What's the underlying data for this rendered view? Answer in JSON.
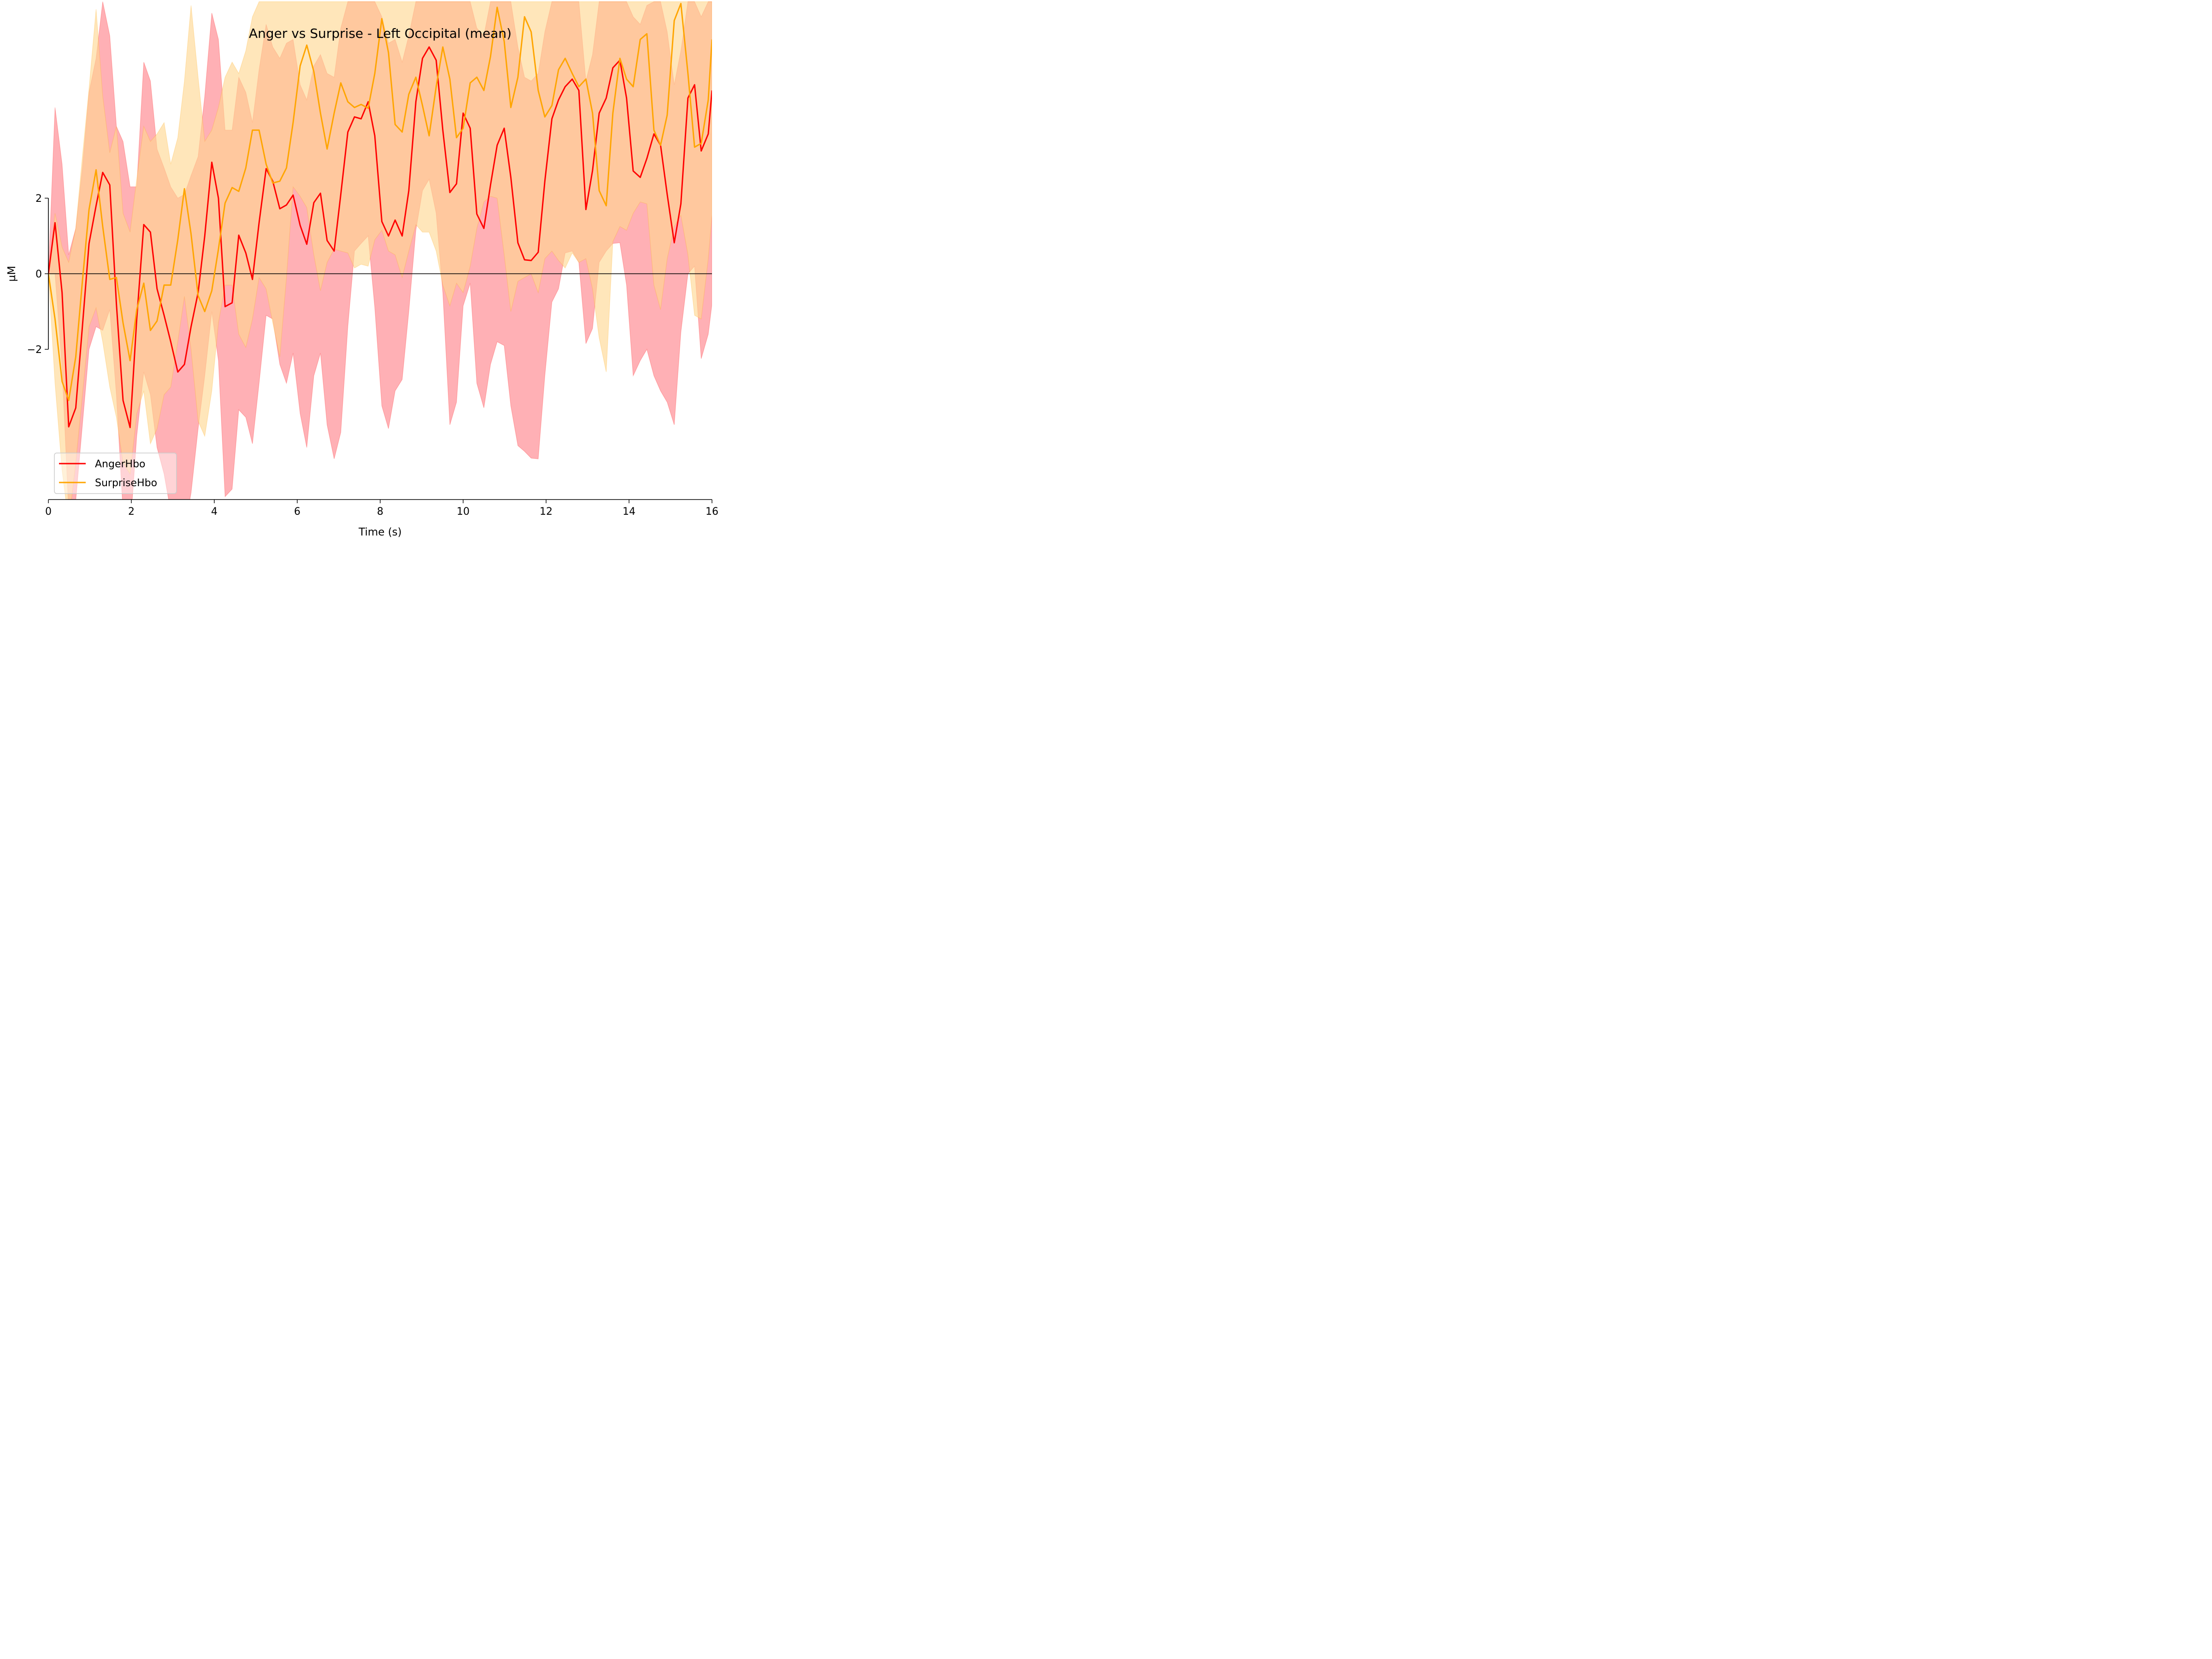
{
  "chart_data": {
    "type": "line",
    "title": "Anger vs Surprise - Left Occipital (mean)",
    "xlabel": "Time (s)",
    "ylabel": "µM",
    "xlim": [
      0,
      16
    ],
    "ylim": [
      -6,
      7.2
    ],
    "x_ticks": [
      0,
      2,
      4,
      6,
      8,
      10,
      12,
      14,
      16
    ],
    "x_tick_labels": [
      "0",
      "2",
      "4",
      "6",
      "8",
      "10",
      "12",
      "14",
      "16"
    ],
    "y_ticks": [
      -2,
      0,
      2
    ],
    "y_tick_labels": [
      "−2",
      "0",
      "2"
    ],
    "zero_line": true,
    "grid": false,
    "legend_position": "lower-left",
    "series": [
      {
        "name": "AngerHbo",
        "color": "#ff0000",
        "band_color": "#ff7f87",
        "x": [
          0,
          0.16,
          0.33,
          0.49,
          0.66,
          0.82,
          0.98,
          1.15,
          1.31,
          1.48,
          1.64,
          1.8,
          1.97,
          2.13,
          2.3,
          2.46,
          2.62,
          2.79,
          2.95,
          3.12,
          3.28,
          3.44,
          3.61,
          3.77,
          3.94,
          4.1,
          4.26,
          4.43,
          4.59,
          4.76,
          4.92,
          5.08,
          5.25,
          5.41,
          5.58,
          5.74,
          5.9,
          6.07,
          6.23,
          6.4,
          6.56,
          6.72,
          6.89,
          7.05,
          7.22,
          7.38,
          7.54,
          7.71,
          7.87,
          8.04,
          8.2,
          8.36,
          8.53,
          8.69,
          8.86,
          9.02,
          9.18,
          9.35,
          9.51,
          9.68,
          9.84,
          10.0,
          10.17,
          10.33,
          10.5,
          10.66,
          10.82,
          10.99,
          11.15,
          11.32,
          11.48,
          11.64,
          11.81,
          11.97,
          12.14,
          12.3,
          12.46,
          12.63,
          12.79,
          12.96,
          13.12,
          13.28,
          13.45,
          13.61,
          13.78,
          13.94,
          14.1,
          14.27,
          14.43,
          14.6,
          14.76,
          14.92,
          15.09,
          15.25,
          15.42,
          15.58,
          15.74,
          15.91,
          16.0
        ],
        "y": [
          0,
          1.35,
          -0.5,
          -4.05,
          -3.55,
          -1.4,
          0.8,
          1.8,
          2.68,
          2.35,
          -0.8,
          -3.35,
          -4.07,
          -1.2,
          1.3,
          1.1,
          -0.4,
          -1.1,
          -1.8,
          -2.6,
          -2.4,
          -1.4,
          -0.5,
          1.0,
          2.95,
          2.0,
          -0.87,
          -0.77,
          1.02,
          0.55,
          -0.15,
          1.35,
          2.78,
          2.45,
          1.72,
          1.82,
          2.08,
          1.28,
          0.78,
          1.88,
          2.13,
          0.88,
          0.6,
          2.1,
          3.75,
          4.15,
          4.1,
          4.55,
          3.65,
          1.38,
          1.0,
          1.42,
          1.0,
          2.2,
          4.55,
          5.7,
          6.0,
          5.65,
          3.8,
          2.15,
          2.38,
          4.25,
          3.85,
          1.58,
          1.2,
          2.35,
          3.4,
          3.85,
          2.55,
          0.82,
          0.37,
          0.35,
          0.57,
          2.45,
          4.1,
          4.6,
          4.95,
          5.15,
          4.85,
          1.7,
          2.73,
          4.25,
          4.65,
          5.45,
          5.65,
          4.65,
          2.72,
          2.55,
          3.05,
          3.7,
          3.4,
          2.1,
          0.82,
          1.85,
          4.65,
          5.0,
          3.25,
          3.7,
          4.85
        ],
        "lower": [
          0,
          0.0,
          -2.5,
          -6.3,
          -6.0,
          -4.0,
          -2.0,
          -1.4,
          -1.5,
          -0.95,
          -3.2,
          -6.3,
          -6.8,
          -4.3,
          -2.6,
          -3.2,
          -4.6,
          -5.3,
          -6.3,
          -7.0,
          -6.8,
          -5.8,
          -4.1,
          -2.7,
          -1.0,
          -2.3,
          -5.9,
          -5.7,
          -3.6,
          -3.8,
          -4.5,
          -2.9,
          -1.1,
          -1.2,
          -2.4,
          -2.9,
          -2.1,
          -3.7,
          -4.6,
          -2.7,
          -2.1,
          -4.0,
          -4.9,
          -4.2,
          -1.4,
          0.6,
          0.8,
          1.0,
          -0.9,
          -3.5,
          -4.1,
          -3.1,
          -2.8,
          -1.0,
          1.15,
          2.2,
          2.5,
          1.6,
          -0.5,
          -4.0,
          -3.4,
          -0.85,
          -0.25,
          -2.9,
          -3.55,
          -2.4,
          -1.8,
          -1.9,
          -3.5,
          -4.55,
          -4.7,
          -4.88,
          -4.9,
          -2.7,
          -0.75,
          -0.4,
          0.55,
          0.6,
          0.3,
          -1.85,
          -1.45,
          0.3,
          0.6,
          0.8,
          0.82,
          -0.3,
          -2.7,
          -2.3,
          -2.0,
          -2.7,
          -3.1,
          -3.4,
          -4.0,
          -1.55,
          0.0,
          0.2,
          -2.25,
          -1.6,
          -0.8
        ],
        "upper": [
          0,
          4.4,
          2.9,
          0.5,
          1.2,
          2.8,
          4.8,
          5.7,
          7.2,
          6.3,
          3.9,
          3.5,
          2.3,
          2.3,
          5.6,
          5.1,
          3.3,
          2.8,
          2.3,
          2.0,
          2.1,
          2.6,
          3.1,
          4.7,
          6.9,
          6.2,
          3.8,
          3.8,
          5.2,
          4.8,
          4.0,
          5.4,
          6.6,
          6.0,
          5.7,
          6.1,
          6.2,
          5.0,
          4.6,
          5.5,
          5.8,
          5.3,
          5.2,
          6.5,
          7.2,
          7.2,
          7.2,
          7.2,
          7.2,
          6.8,
          6.1,
          6.2,
          5.6,
          6.3,
          7.2,
          7.2,
          7.2,
          7.2,
          7.2,
          7.2,
          7.2,
          7.2,
          7.2,
          6.5,
          6.3,
          7.2,
          7.2,
          7.2,
          7.2,
          6.0,
          5.2,
          5.1,
          5.3,
          6.4,
          7.2,
          7.2,
          7.2,
          7.2,
          7.2,
          5.1,
          5.8,
          7.2,
          7.2,
          7.2,
          7.2,
          7.2,
          6.8,
          6.6,
          7.1,
          7.2,
          7.2,
          6.4,
          5.0,
          5.9,
          7.2,
          7.2,
          6.8,
          7.2,
          7.2
        ]
      },
      {
        "name": "SurpriseHbo",
        "color": "#ffa500",
        "band_color": "#ffd690",
        "x": [
          0,
          0.16,
          0.33,
          0.49,
          0.66,
          0.82,
          0.98,
          1.15,
          1.31,
          1.48,
          1.64,
          1.8,
          1.97,
          2.13,
          2.3,
          2.46,
          2.62,
          2.79,
          2.95,
          3.12,
          3.28,
          3.44,
          3.61,
          3.77,
          3.94,
          4.1,
          4.26,
          4.43,
          4.59,
          4.76,
          4.92,
          5.08,
          5.25,
          5.41,
          5.58,
          5.74,
          5.9,
          6.07,
          6.23,
          6.4,
          6.56,
          6.72,
          6.89,
          7.05,
          7.22,
          7.38,
          7.54,
          7.71,
          7.87,
          8.04,
          8.2,
          8.36,
          8.53,
          8.69,
          8.86,
          9.02,
          9.18,
          9.35,
          9.51,
          9.68,
          9.84,
          10.0,
          10.17,
          10.33,
          10.5,
          10.66,
          10.82,
          10.99,
          11.15,
          11.32,
          11.48,
          11.64,
          11.81,
          11.97,
          12.14,
          12.3,
          12.46,
          12.63,
          12.79,
          12.96,
          13.12,
          13.28,
          13.45,
          13.61,
          13.78,
          13.94,
          14.1,
          14.27,
          14.43,
          14.6,
          14.76,
          14.92,
          15.09,
          15.25,
          15.42,
          15.58,
          15.74,
          15.91,
          16.0
        ],
        "y": [
          0,
          -1.2,
          -2.85,
          -3.35,
          -2.2,
          -0.2,
          1.7,
          2.75,
          1.25,
          -0.15,
          -0.1,
          -1.3,
          -2.3,
          -0.95,
          -0.25,
          -1.5,
          -1.25,
          -0.3,
          -0.3,
          0.9,
          2.25,
          1.05,
          -0.58,
          -1.0,
          -0.45,
          0.65,
          1.87,
          2.28,
          2.18,
          2.8,
          3.8,
          3.8,
          2.9,
          2.4,
          2.45,
          2.8,
          4.0,
          5.5,
          6.05,
          5.35,
          4.25,
          3.3,
          4.25,
          5.05,
          4.55,
          4.4,
          4.48,
          4.38,
          5.3,
          6.75,
          5.85,
          3.95,
          3.75,
          4.75,
          5.2,
          4.45,
          3.65,
          4.95,
          6.0,
          5.15,
          3.6,
          3.85,
          5.05,
          5.2,
          4.85,
          5.75,
          7.05,
          6.15,
          4.4,
          5.2,
          6.8,
          6.4,
          4.85,
          4.15,
          4.45,
          5.4,
          5.7,
          5.3,
          4.95,
          5.15,
          4.25,
          2.2,
          1.8,
          4.25,
          5.7,
          5.15,
          4.95,
          6.2,
          6.35,
          3.8,
          3.4,
          4.2,
          6.7,
          7.15,
          5.3,
          3.35,
          3.45,
          4.6,
          6.2
        ],
        "lower": [
          0,
          -2.9,
          -5.2,
          -6.6,
          -5.0,
          -3.2,
          -1.4,
          -0.9,
          -1.8,
          -3.0,
          -3.8,
          -5.0,
          -5.3,
          -3.7,
          -3.1,
          -4.5,
          -4.1,
          -3.2,
          -3.0,
          -1.8,
          -0.6,
          -2.0,
          -3.9,
          -4.3,
          -3.1,
          -1.3,
          -0.3,
          -0.3,
          -1.6,
          -1.95,
          -1.2,
          -0.1,
          -0.4,
          -1.3,
          -2.2,
          -0.1,
          2.3,
          2.05,
          1.75,
          0.5,
          -0.45,
          0.3,
          0.65,
          0.6,
          0.55,
          0.15,
          0.25,
          0.2,
          0.9,
          1.15,
          0.6,
          0.5,
          -0.1,
          0.6,
          1.3,
          1.1,
          1.1,
          0.6,
          -0.3,
          -0.85,
          -0.25,
          -0.5,
          0.2,
          1.2,
          1.9,
          2.05,
          2.0,
          0.5,
          -1.0,
          -0.2,
          -0.1,
          0.0,
          -0.5,
          0.4,
          0.6,
          0.35,
          0.15,
          0.55,
          0.3,
          0.4,
          -0.4,
          -1.7,
          -2.6,
          0.85,
          1.25,
          1.15,
          1.6,
          1.9,
          1.85,
          -0.3,
          -0.95,
          0.4,
          1.25,
          1.55,
          0.5,
          -1.1,
          -1.2,
          0.4,
          1.55
        ],
        "upper": [
          0,
          1.6,
          0.7,
          0.3,
          1.2,
          3.1,
          4.9,
          7.0,
          4.7,
          3.2,
          3.9,
          1.6,
          1.1,
          2.5,
          3.9,
          3.5,
          3.7,
          4.0,
          2.9,
          3.6,
          5.1,
          7.1,
          5.2,
          3.5,
          3.8,
          4.4,
          5.2,
          5.6,
          5.3,
          5.9,
          6.8,
          7.2,
          7.2,
          7.2,
          7.2,
          7.2,
          7.2,
          7.2,
          7.2,
          7.2,
          7.2,
          7.2,
          7.2,
          7.2,
          7.2,
          7.2,
          7.2,
          7.2,
          7.2,
          7.2,
          7.2,
          7.2,
          7.2,
          7.2,
          7.2,
          7.2,
          7.2,
          7.2,
          7.2,
          7.2,
          7.2,
          7.2,
          7.2,
          7.2,
          7.2,
          7.2,
          7.2,
          7.2,
          7.2,
          7.2,
          7.2,
          7.2,
          7.2,
          7.2,
          7.2,
          7.2,
          7.2,
          7.2,
          7.2,
          7.2,
          7.2,
          7.2,
          7.2,
          7.2,
          7.2,
          7.2,
          7.2,
          7.2,
          7.2,
          7.2,
          7.2,
          7.2,
          7.2,
          7.2,
          7.2,
          7.2,
          7.2,
          7.2,
          7.2
        ]
      }
    ]
  }
}
